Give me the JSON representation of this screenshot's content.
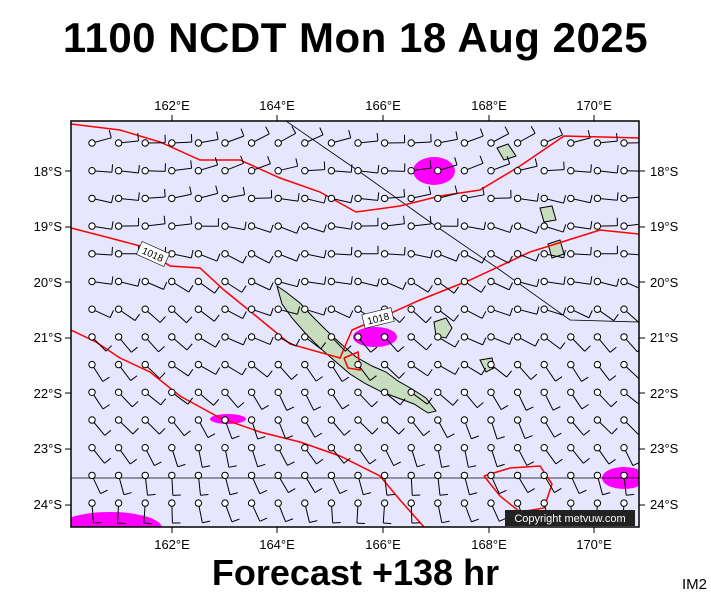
{
  "header": {
    "title": "1100 NCDT Mon 18 Aug 2025"
  },
  "footer": {
    "forecast": "Forecast +138 hr",
    "code": "IM2"
  },
  "map": {
    "copyright": "Copyright metvuw.com",
    "isobar_labels": [
      "1018",
      "1018"
    ],
    "lon_labels": [
      "162°E",
      "164°E",
      "166°E",
      "168°E",
      "170°E"
    ],
    "lat_labels": [
      "18°S",
      "19°S",
      "20°S",
      "21°S",
      "22°S",
      "23°S",
      "24°S"
    ],
    "colors": {
      "ocean": "#e6e6ff",
      "isobar": "#ff0000",
      "land": "#c8dcc0",
      "rain": "#ff00ff",
      "barb": "#000000"
    }
  }
}
